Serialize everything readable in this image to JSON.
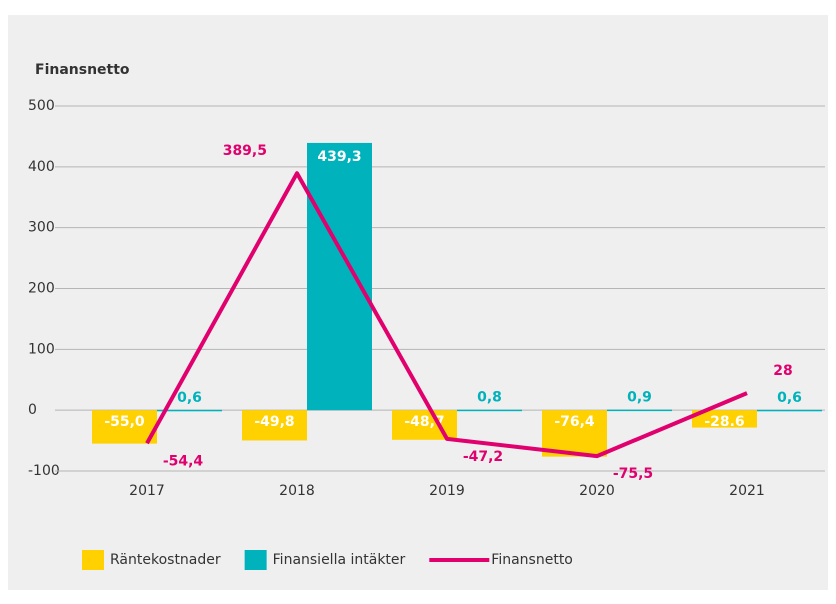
{
  "chart_data": {
    "type": "bar_line",
    "title": "Finansnetto",
    "categories": [
      "2017",
      "2018",
      "2019",
      "2020",
      "2021"
    ],
    "series": [
      {
        "name": "Räntekostnader",
        "type": "bar",
        "color": "#ffd100",
        "values": [
          -55.0,
          -49.8,
          -48.7,
          -76.4,
          -28.6
        ],
        "value_labels": [
          "-55,0",
          "-49,8",
          "-48,7",
          "-76,4",
          "-28.6"
        ]
      },
      {
        "name": "Finansiella intäkter",
        "type": "bar",
        "color": "#00b2bb",
        "values": [
          0.6,
          439.3,
          0.8,
          0.9,
          0.6
        ],
        "value_labels": [
          "0,6",
          "439,3",
          "0,8",
          "0,9",
          "0,6"
        ]
      },
      {
        "name": "Finansnetto",
        "type": "line",
        "color": "#e0006e",
        "values": [
          -54.4,
          389.5,
          -47.2,
          -75.5,
          28
        ],
        "value_labels": [
          "-54,4",
          "389,5",
          "-47,2",
          "-75,5",
          "28"
        ]
      }
    ],
    "ylim": [
      -100,
      500
    ],
    "yticks": [
      -100,
      0,
      100,
      200,
      300,
      400,
      500
    ],
    "grid": true
  }
}
